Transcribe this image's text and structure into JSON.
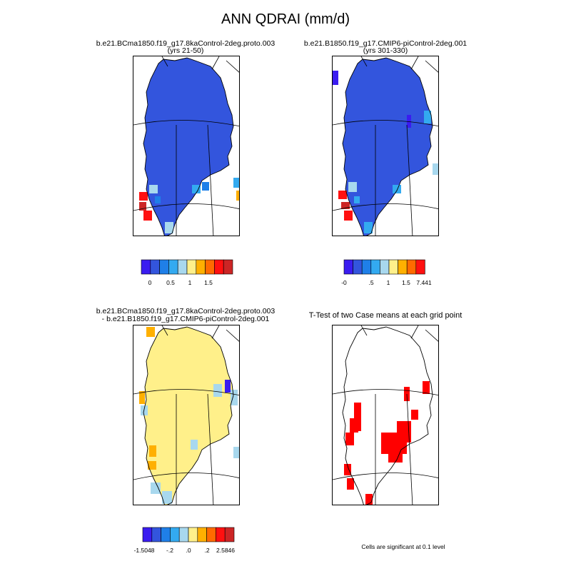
{
  "title": "ANN QDRAI (mm/d)",
  "footnote": "Cells are significant at 0.1 level",
  "colors": {
    "palette": [
      "#3a1cf0",
      "#3355dd",
      "#1f7fe8",
      "#33aaf0",
      "#a8d8ee",
      "#fff08a",
      "#ffb000",
      "#ff6a00",
      "#ff1010",
      "#cc2525"
    ],
    "ocean": "#ffffff",
    "significant": "#ff0000"
  },
  "chart_data": [
    {
      "type": "heatmap",
      "panel": "case1",
      "title_line1": "b.e21.BCma1850.f19_g17.8kaControl-2deg.proto.003",
      "title_line2": "(yrs 21-50)",
      "colorbar_labels": [
        "0",
        "0.5",
        "1",
        "1.5"
      ],
      "dominant_color": "#3355dd"
    },
    {
      "type": "heatmap",
      "panel": "case2",
      "title_line1": "b.e21.B1850.f19_g17.CMIP6-piControl-2deg.001",
      "title_line2": "(yrs 301-330)",
      "colorbar_labels": [
        "-0",
        ".5",
        "1",
        "1.5",
        "7.441"
      ],
      "dominant_color": "#3355dd"
    },
    {
      "type": "heatmap",
      "panel": "difference",
      "title_line1": "b.e21.BCma1850.f19_g17.8kaControl-2deg.proto.003",
      "title_line2": "- b.e21.B1850.f19_g17.CMIP6-piControl-2deg.001",
      "colorbar_labels": [
        "-1.5048",
        "-.2",
        ".0",
        ".2",
        "2.5846"
      ],
      "dominant_color": "#fff08a"
    },
    {
      "type": "heatmap",
      "panel": "ttest",
      "title_line1": "T-Test of two Case means at each grid point",
      "dominant_color": "#ff0000"
    }
  ]
}
